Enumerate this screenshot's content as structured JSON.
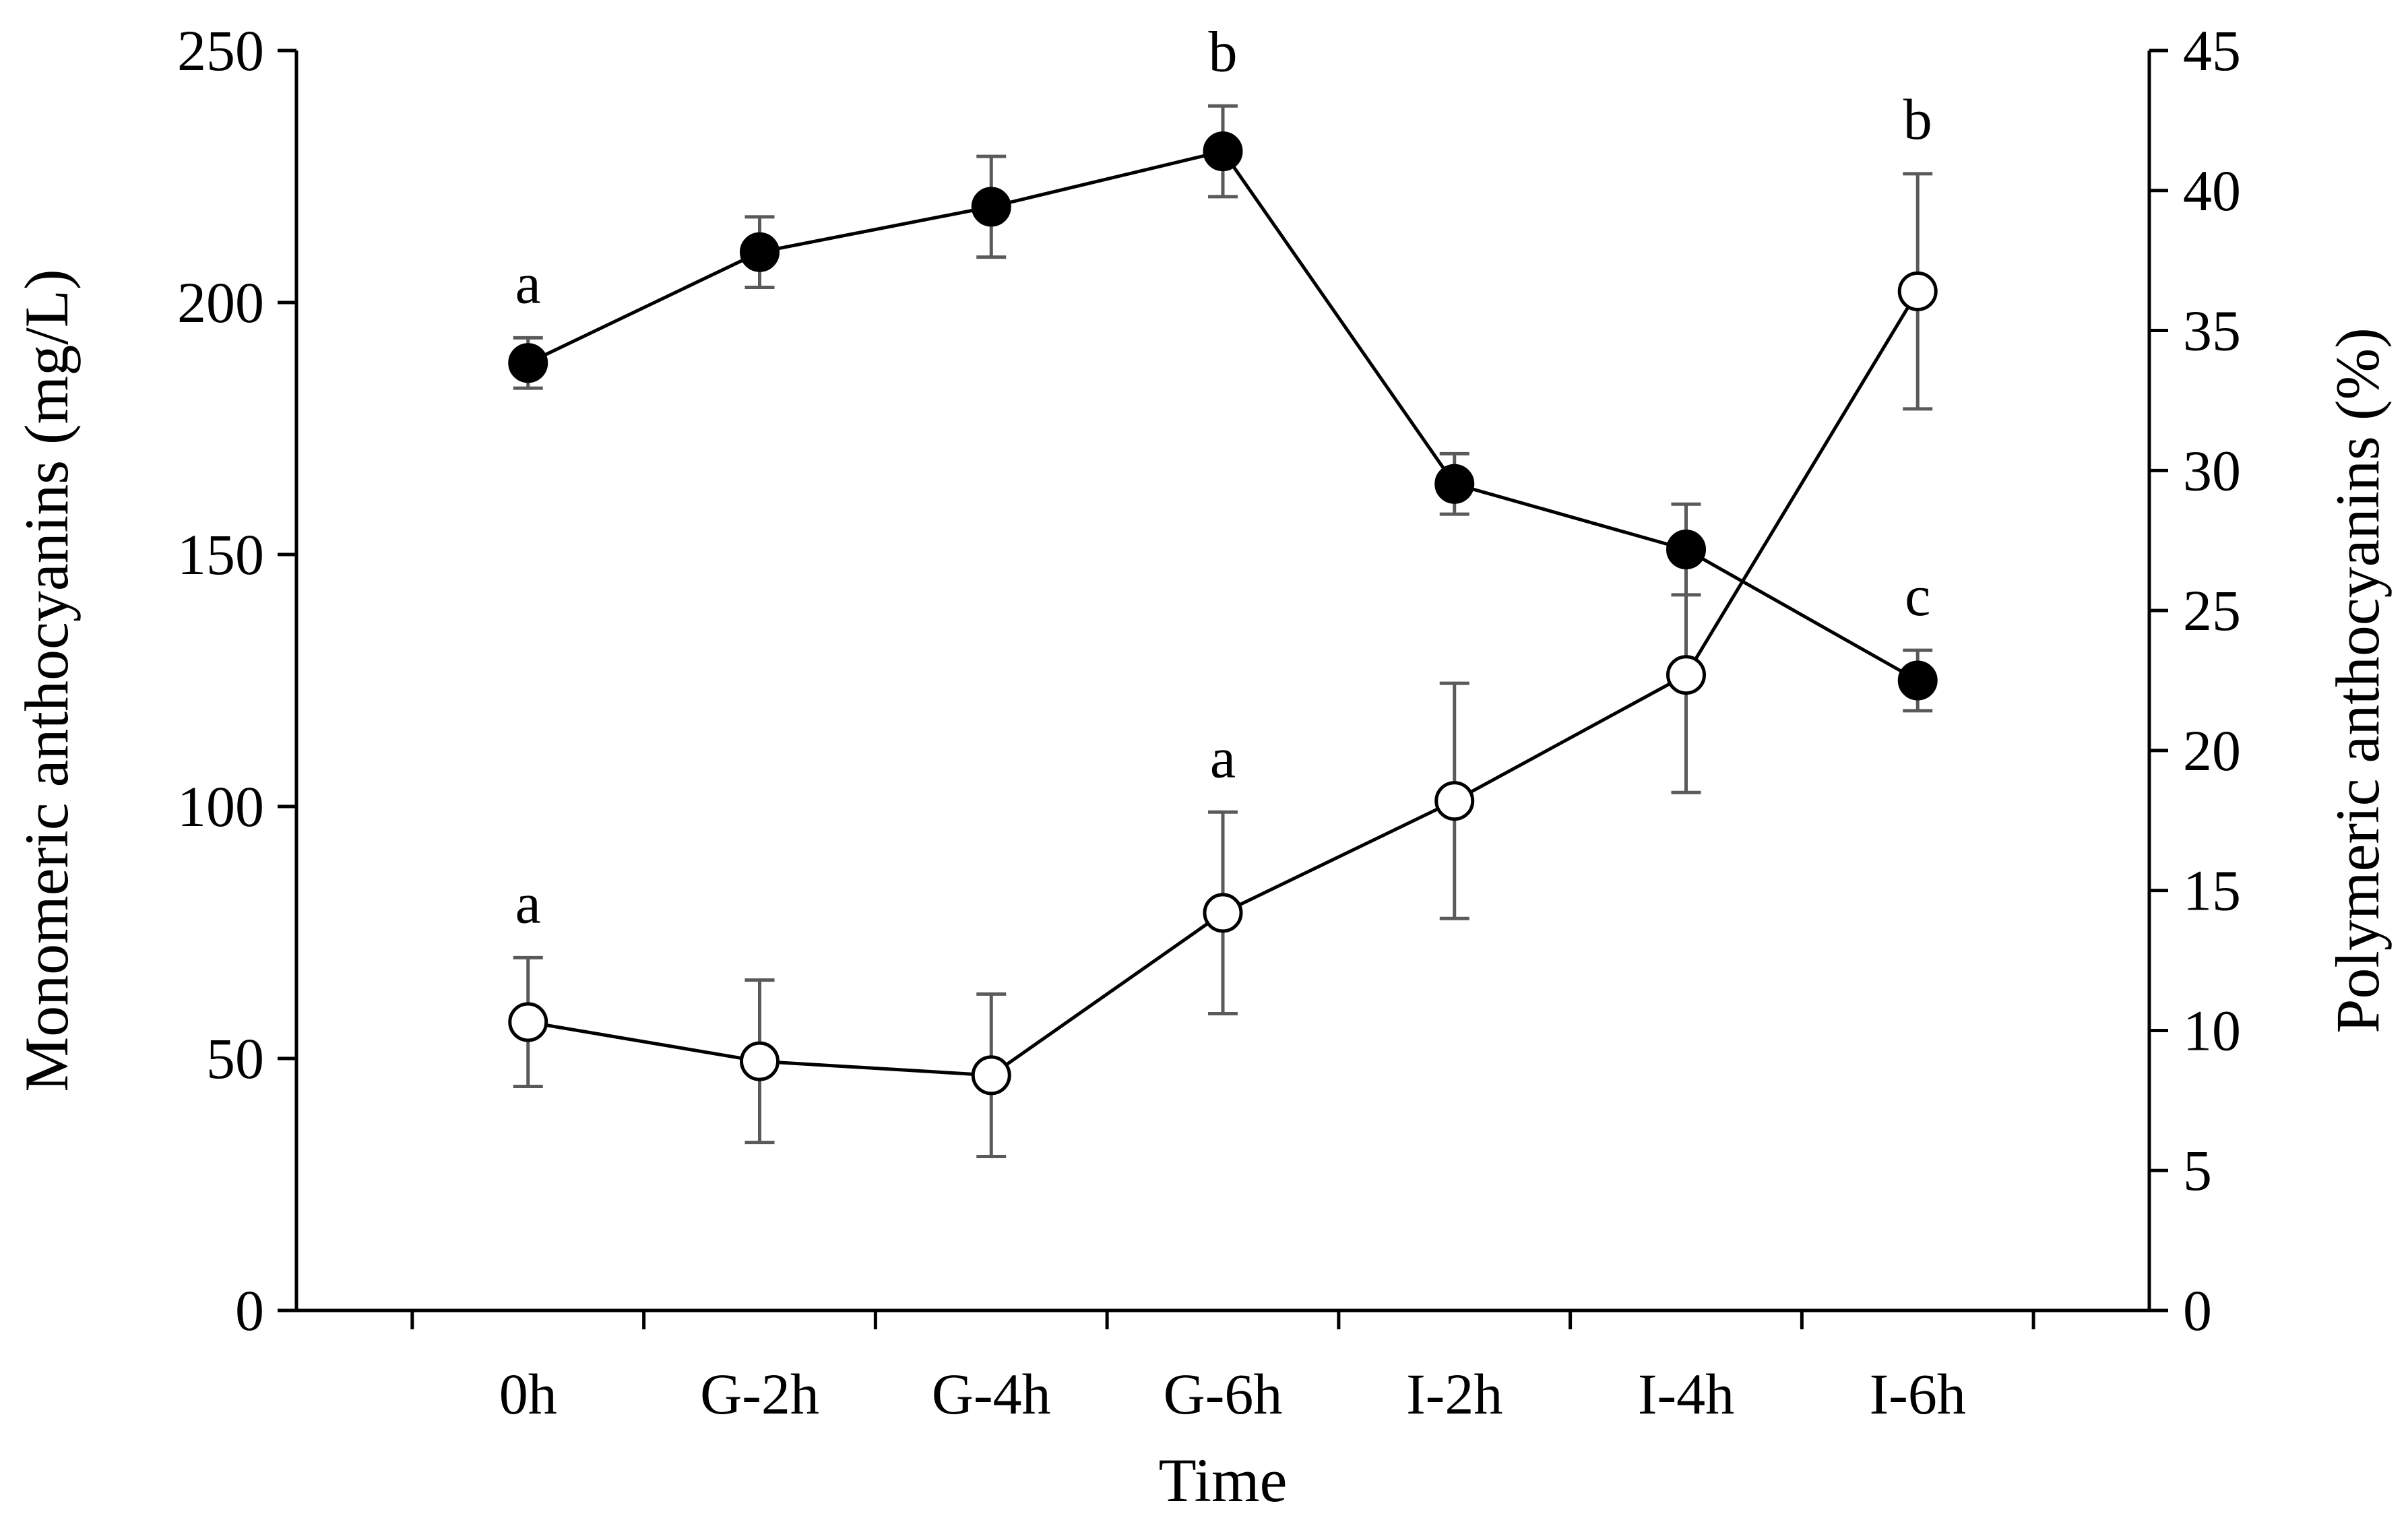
{
  "chart_data": {
    "type": "line",
    "categories": [
      "0h",
      "G-2h",
      "G-4h",
      "G-6h",
      "I-2h",
      "I-4h",
      "I-6h"
    ],
    "xlabel": "Time",
    "ylabel_left": "Monomeric anthocyanins (mg/L)",
    "ylabel_right": "Polymeric anthocyanins (%)",
    "y_left": {
      "range": [
        0,
        250
      ],
      "ticks": [
        0,
        50,
        100,
        150,
        200,
        250
      ]
    },
    "y_right": {
      "range": [
        0,
        45
      ],
      "ticks": [
        0,
        5,
        10,
        15,
        20,
        25,
        30,
        35,
        40,
        45
      ]
    },
    "grid": false,
    "series": [
      {
        "name": "Monomeric anthocyanins",
        "axis": "left",
        "marker": "filled-circle",
        "values": [
          188,
          210,
          219,
          230,
          164,
          151,
          125
        ],
        "errors": [
          5,
          7,
          10,
          9,
          6,
          9,
          6
        ],
        "annotations": [
          {
            "category": "0h",
            "label": "a"
          },
          {
            "category": "G-6h",
            "label": "b"
          },
          {
            "category": "I-6h",
            "label": "c"
          }
        ]
      },
      {
        "name": "Polymeric anthocyanins",
        "axis": "right",
        "marker": "open-circle",
        "values": [
          10.3,
          8.9,
          8.4,
          14.2,
          18.2,
          22.7,
          36.4
        ],
        "errors": [
          2.3,
          2.9,
          2.9,
          3.6,
          4.2,
          4.2,
          4.2
        ],
        "annotations": [
          {
            "category": "0h",
            "label": "a"
          },
          {
            "category": "G-6h",
            "label": "a"
          },
          {
            "category": "I-6h",
            "label": "b"
          }
        ]
      }
    ],
    "colors": {
      "line": "#000000",
      "errorbar": "#5a5a5a",
      "open_fill": "#ffffff"
    }
  }
}
